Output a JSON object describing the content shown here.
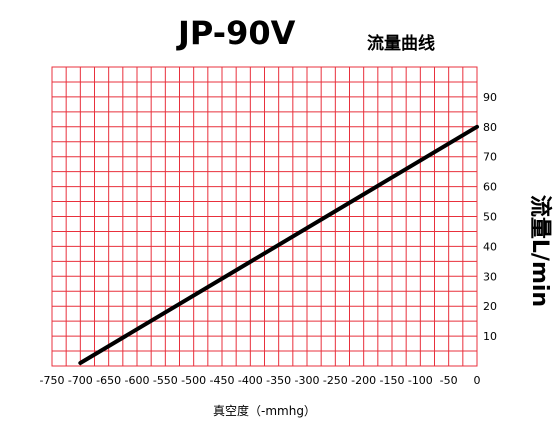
{
  "chart_data": {
    "type": "line",
    "title": "JP-90V",
    "subtitle": "流量曲线",
    "xlabel": "真空度（-mmhg）",
    "ylabel": "流量L/min",
    "x_ticks": [
      "-750",
      "-700",
      "-650",
      "-600",
      "-550",
      "-500",
      "-450",
      "-400",
      "-350",
      "-300",
      "-250",
      "-200",
      "-150",
      "-100",
      "-50",
      "0"
    ],
    "y_ticks": [
      "10",
      "20",
      "30",
      "40",
      "50",
      "60",
      "70",
      "80",
      "90"
    ],
    "xlim": [
      -750,
      0
    ],
    "ylim": [
      0,
      100
    ],
    "grid": true,
    "grid_color": "#e8303c",
    "line_color": "#000000",
    "series": [
      {
        "x": [
          -700,
          0
        ],
        "y": [
          1,
          80
        ]
      }
    ]
  }
}
